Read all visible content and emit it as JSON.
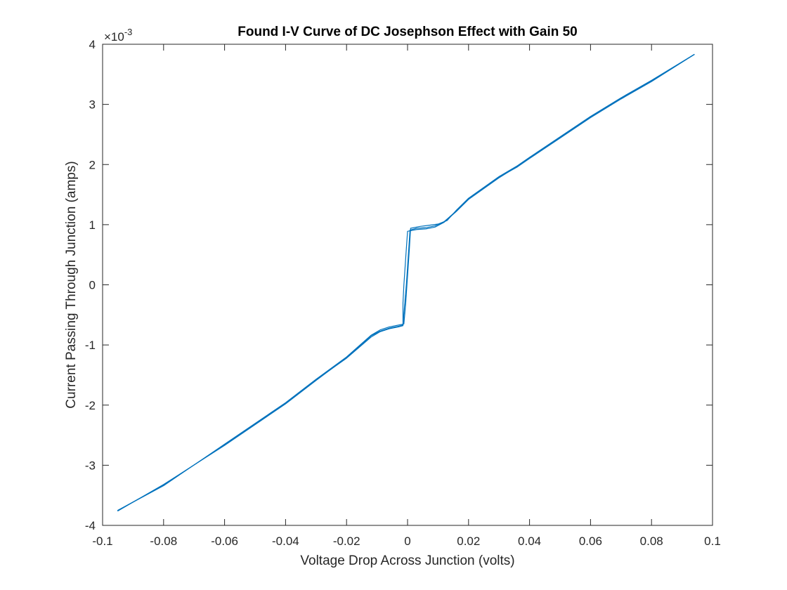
{
  "chart_data": {
    "type": "line",
    "title": "Found I-V Curve of DC Josephson Effect with Gain 50",
    "xlabel": "Voltage Drop Across Junction (volts)",
    "ylabel": "Current Passing Through Junction (amps)",
    "xlim": [
      -0.1,
      0.1
    ],
    "ylim": [
      -0.004,
      0.004
    ],
    "xticks": [
      -0.1,
      -0.08,
      -0.06,
      -0.04,
      -0.02,
      0,
      0.02,
      0.04,
      0.06,
      0.08,
      0.1
    ],
    "xtick_labels": [
      "-0.1",
      "-0.08",
      "-0.06",
      "-0.04",
      "-0.02",
      "0",
      "0.02",
      "0.04",
      "0.06",
      "0.08",
      "0.1"
    ],
    "yticks": [
      -0.004,
      -0.003,
      -0.002,
      -0.001,
      0,
      0.001,
      0.002,
      0.003,
      0.004
    ],
    "ytick_labels": [
      "-4",
      "-3",
      "-2",
      "-1",
      "0",
      "1",
      "2",
      "3",
      "4"
    ],
    "y_exponent_label": "×10",
    "y_exponent": "-3",
    "grid": false,
    "series_color": "#0072BD",
    "series": [
      {
        "x": [
          -0.095,
          -0.08,
          -0.06,
          -0.04,
          -0.03,
          -0.02,
          -0.012,
          -0.009,
          -0.006,
          -0.003,
          -0.0015,
          -0.0015,
          -0.0012,
          -0.0008,
          -0.0004,
          0.0,
          0.003,
          0.006,
          0.009,
          0.012,
          0.016,
          0.02,
          0.03,
          0.036,
          0.04,
          0.05,
          0.06,
          0.07,
          0.08,
          0.094
        ],
        "y": [
          -0.00375,
          -0.00333,
          -0.00266,
          -0.00197,
          -0.00158,
          -0.00122,
          -0.00087,
          -0.00078,
          -0.00073,
          -0.0007,
          -0.00068,
          -0.0003,
          0.0,
          0.0003,
          0.0006,
          0.00089,
          0.00092,
          0.00093,
          0.00096,
          0.00104,
          0.00122,
          0.00142,
          0.00178,
          0.00197,
          0.00211,
          0.00245,
          0.00279,
          0.0031,
          0.00339,
          0.00383
        ]
      },
      {
        "x": [
          -0.095,
          -0.08,
          -0.06,
          -0.04,
          -0.03,
          -0.02,
          -0.012,
          -0.009,
          -0.006,
          -0.003,
          -0.0012,
          -0.0006,
          -0.0002,
          0.0002,
          0.0006,
          0.001,
          0.004,
          0.007,
          0.01,
          0.013,
          0.016,
          0.02,
          0.03,
          0.036,
          0.04,
          0.05,
          0.06,
          0.07,
          0.08,
          0.094
        ],
        "y": [
          -0.00375,
          -0.00334,
          -0.00265,
          -0.00196,
          -0.00157,
          -0.0012,
          -0.00084,
          -0.00075,
          -0.0007,
          -0.00067,
          -0.00065,
          -0.0003,
          0.0,
          0.0003,
          0.0006,
          0.00094,
          0.00097,
          0.00099,
          0.00101,
          0.00107,
          0.00124,
          0.00144,
          0.0018,
          0.00198,
          0.00212,
          0.00246,
          0.0028,
          0.00311,
          0.0034,
          0.00383
        ]
      },
      {
        "x": [
          -0.095,
          -0.08,
          -0.06,
          -0.04,
          -0.03,
          -0.02,
          -0.012,
          -0.009,
          -0.006,
          -0.003,
          -0.0015,
          -0.0009,
          -0.0004,
          0.0,
          0.0004,
          0.0008,
          0.003,
          0.006,
          0.009,
          0.012,
          0.016,
          0.02,
          0.03,
          0.036,
          0.04,
          0.05,
          0.06,
          0.07,
          0.08,
          0.094
        ],
        "y": [
          -0.00376,
          -0.00332,
          -0.00267,
          -0.00198,
          -0.00159,
          -0.00121,
          -0.00085,
          -0.00077,
          -0.00072,
          -0.00069,
          -0.00067,
          -0.0003,
          0.0,
          0.0003,
          0.0006,
          0.00091,
          0.00094,
          0.00095,
          0.00098,
          0.00105,
          0.00123,
          0.00143,
          0.00179,
          0.00196,
          0.0021,
          0.00244,
          0.00278,
          0.00309,
          0.00338,
          0.00383
        ]
      }
    ]
  }
}
